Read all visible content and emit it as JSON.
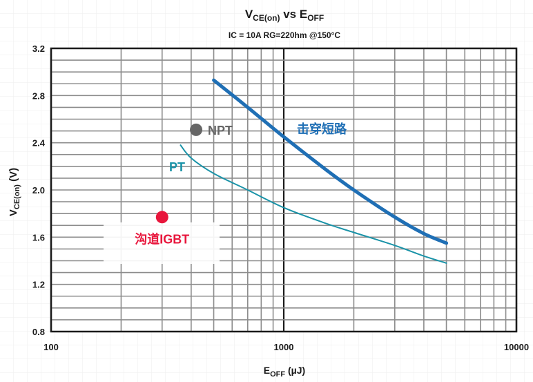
{
  "chart_data": {
    "type": "line",
    "title": {
      "main": "V",
      "main_sub": "CE(on)",
      "mid": " vs E",
      "mid_sub": "OFF"
    },
    "subtitle": "IC = 10A  RG=220hm @150°C",
    "xlabel": {
      "main": "E",
      "sub": "OFF",
      "rest": " (µJ)"
    },
    "ylabel": {
      "main": "V",
      "sub": "CE(on)",
      "rest": " (V)"
    },
    "x_scale": "log",
    "xlim": [
      100,
      10000
    ],
    "ylim": [
      0.8,
      3.2
    ],
    "grid": true,
    "x_tick_labels": [
      {
        "value": 100,
        "label": "100"
      },
      {
        "value": 1000,
        "label": "1000"
      },
      {
        "value": 10000,
        "label": "10000"
      }
    ],
    "y_ticks": [
      0.8,
      1.2,
      1.6,
      2.0,
      2.4,
      2.8,
      3.2
    ],
    "y_tick_labels": [
      "0.8",
      "1.2",
      "1.6",
      "2.0",
      "2.4",
      "2.8",
      "3.2"
    ],
    "series": [
      {
        "name": "击穿短路",
        "color": "#1f6fb5",
        "points": [
          [
            500,
            2.93
          ],
          [
            700,
            2.7
          ],
          [
            1000,
            2.45
          ],
          [
            1500,
            2.18
          ],
          [
            2000,
            2.0
          ],
          [
            3000,
            1.77
          ],
          [
            4000,
            1.63
          ],
          [
            5000,
            1.55
          ]
        ]
      },
      {
        "name": "PT",
        "color": "#1a93a8",
        "points": [
          [
            360,
            2.38
          ],
          [
            400,
            2.27
          ],
          [
            500,
            2.14
          ],
          [
            700,
            2.0
          ],
          [
            1000,
            1.85
          ],
          [
            1500,
            1.72
          ],
          [
            2000,
            1.64
          ],
          [
            3000,
            1.53
          ],
          [
            4000,
            1.44
          ],
          [
            5000,
            1.38
          ]
        ]
      }
    ],
    "points": [
      {
        "name": "NPT",
        "x": 420,
        "y": 2.51,
        "color": "#666666"
      },
      {
        "name": "沟道IGBT",
        "x": 300,
        "y": 1.77,
        "color": "#e8163c"
      }
    ]
  }
}
